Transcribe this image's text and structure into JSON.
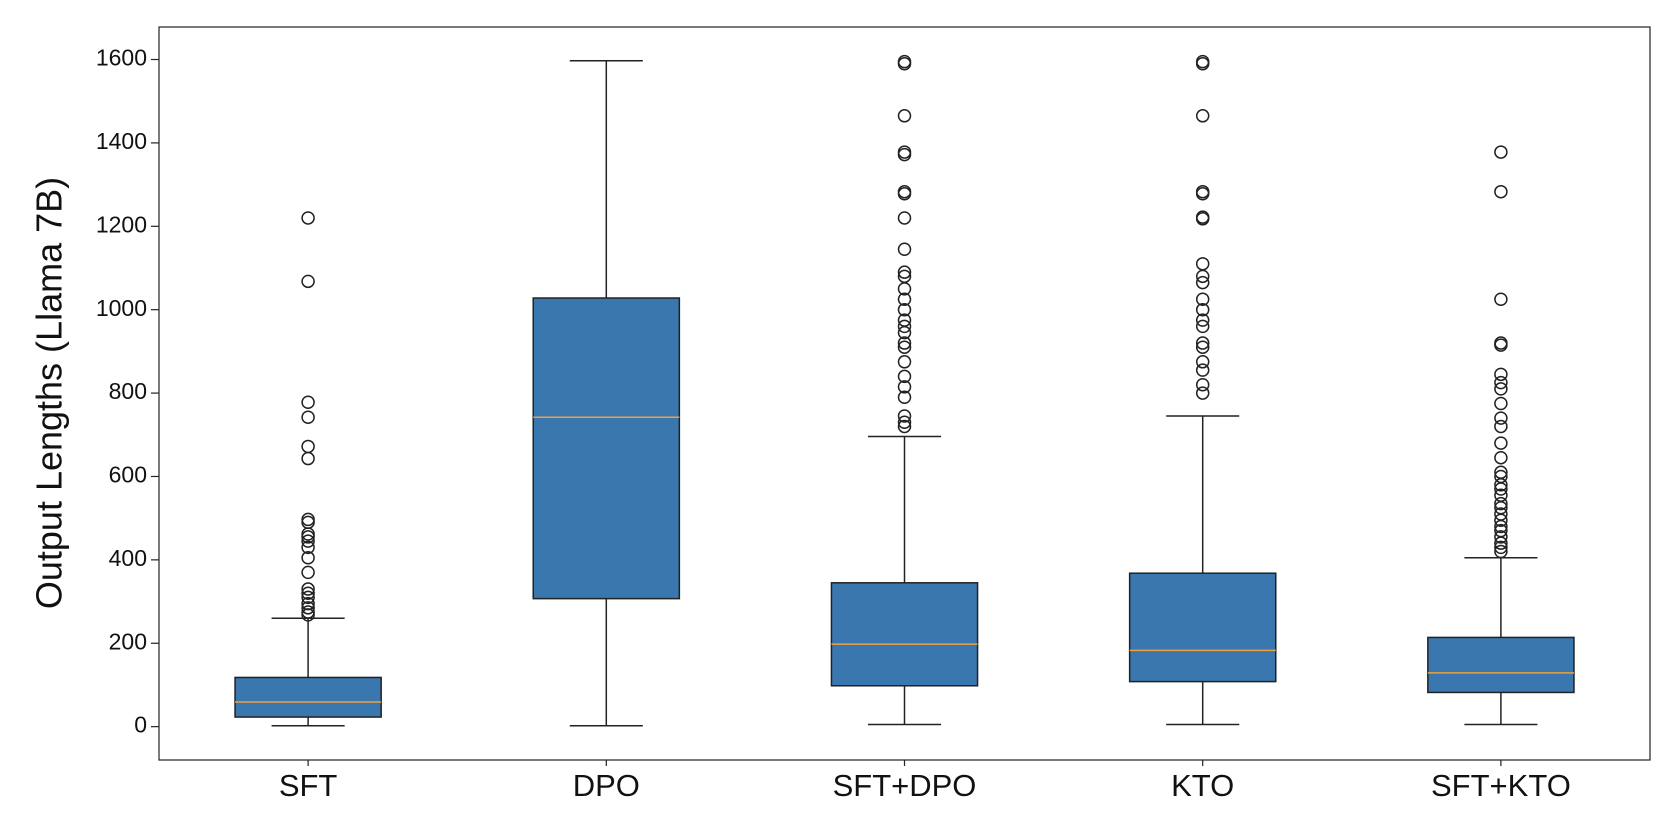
{
  "chart_data": {
    "type": "box",
    "y_label": "Output Lengths (Llama 7B)",
    "categories": [
      "SFT",
      "DPO",
      "SFT+DPO",
      "KTO",
      "SFT+KTO"
    ],
    "color": "#3a77ae",
    "median_color": "#f0a040",
    "ylim": [
      -80,
      1678
    ],
    "yticks": [
      0,
      200,
      400,
      600,
      800,
      1000,
      1200,
      1400,
      1600
    ],
    "boxes": [
      {
        "whislo": 2,
        "q1": 23,
        "med": 59,
        "q3": 118,
        "whishi": 260,
        "fliers": [
          1220,
          1068,
          778,
          742,
          672,
          643,
          497,
          490,
          462,
          455,
          445,
          430,
          405,
          370,
          330,
          320,
          310,
          295,
          285,
          275,
          268
        ]
      },
      {
        "whislo": 2,
        "q1": 307,
        "med": 742,
        "q3": 1028,
        "whishi": 1597,
        "fliers": []
      },
      {
        "whislo": 5,
        "q1": 98,
        "med": 198,
        "q3": 345,
        "whishi": 696,
        "fliers": [
          1595,
          1590,
          1465,
          1378,
          1372,
          1283,
          1278,
          1220,
          1145,
          1090,
          1080,
          1050,
          1025,
          1000,
          975,
          960,
          945,
          920,
          910,
          875,
          840,
          815,
          790,
          745,
          730,
          720
        ]
      },
      {
        "whislo": 5,
        "q1": 108,
        "med": 183,
        "q3": 368,
        "whishi": 745,
        "fliers": [
          1595,
          1590,
          1465,
          1283,
          1278,
          1222,
          1218,
          1110,
          1080,
          1065,
          1025,
          1000,
          975,
          960,
          920,
          910,
          875,
          855,
          820,
          800
        ]
      },
      {
        "whislo": 5,
        "q1": 82,
        "med": 129,
        "q3": 214,
        "whishi": 405,
        "fliers": [
          1378,
          1283,
          1025,
          920,
          915,
          845,
          825,
          810,
          775,
          740,
          720,
          680,
          645,
          610,
          600,
          580,
          570,
          555,
          535,
          525,
          510,
          495,
          480,
          470,
          455,
          440,
          430,
          420
        ]
      }
    ]
  }
}
